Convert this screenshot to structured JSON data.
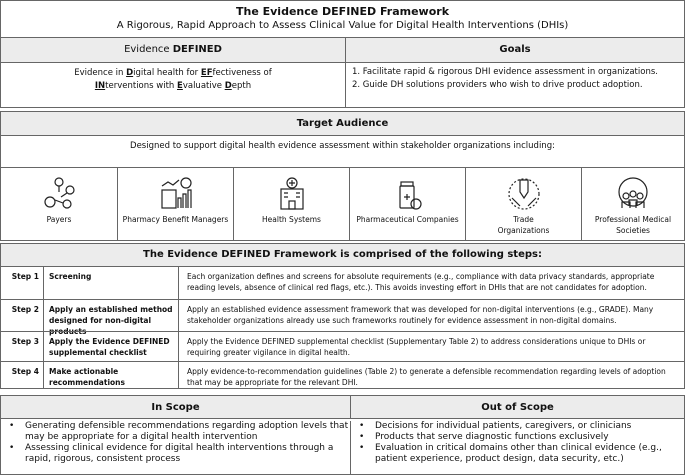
{
  "title": "The Evidence DEFINED Framework",
  "subtitle": "A Rigorous, Rapid Approach to Assess Clinical Value for Digital Health Interventions (DHIs)",
  "defined": {
    "header_pre": "Evidence ",
    "header_bold": "DEFINED",
    "acronym": [
      [
        "Evidence in ",
        ""
      ],
      [
        "D",
        "igital health for "
      ],
      [
        "EF",
        "fectiveness of"
      ],
      [
        "IN",
        "terventions with "
      ],
      [
        "E",
        "valuative "
      ],
      [
        "D",
        "epth"
      ]
    ]
  },
  "goals": {
    "header": "Goals",
    "items": [
      "1. Facilitate rapid & rigorous DHI evidence assessment in organizations.",
      "2. Guide DH solutions providers who wish to drive product adoption."
    ]
  },
  "audience": {
    "header": "Target Audience",
    "description": "Designed to support digital health evidence assessment within stakeholder organizations including:",
    "items": [
      {
        "label": "Payers",
        "icon": "payers-network-icon"
      },
      {
        "label": "Pharmacy Benefit Managers",
        "icon": "chart-report-icon"
      },
      {
        "label": "Health Systems",
        "icon": "hospital-icon"
      },
      {
        "label": "Pharmaceutical Companies",
        "icon": "pill-bottle-icon"
      },
      {
        "label": "Trade Organizations",
        "icon": "hands-icon"
      },
      {
        "label": "Professional Medical Societies",
        "icon": "globe-people-icon"
      }
    ]
  },
  "steps": {
    "header": "The Evidence DEFINED Framework is comprised of the following steps:",
    "items": [
      {
        "step": "Step 1",
        "name": "Screening",
        "desc": "Each organization defines and screens for absolute requirements (e.g., compliance with data privacy standards, appropriate reading levels, absence of clinical red flags, etc.). This avoids investing effort in DHIs that are not candidates for adoption."
      },
      {
        "step": "Step 2",
        "name": "Apply an established method designed for non-digital products",
        "desc": "Apply an established evidence assessment framework that was developed for non-digital interventions (e.g., GRADE). Many stakeholder organizations already use such frameworks routinely for evidence assessment in non-digital domains."
      },
      {
        "step": "Step 3",
        "name": "Apply the Evidence DEFINED supplemental checklist",
        "desc": "Apply the Evidence DEFINED supplemental checklist (Supplementary Table 2) to address considerations unique to DHIs or requiring greater vigilance in digital health."
      },
      {
        "step": "Step 4",
        "name": "Make actionable recommendations",
        "desc": "Apply evidence-to-recommendation guidelines (Table 2) to generate a defensible recommendation regarding levels of adoption that may be appropriate for the relevant DHI."
      }
    ]
  },
  "in_scope": {
    "header": "In Scope",
    "items": [
      "Generating defensible recommendations regarding adoption levels that may be appropriate for a digital health intervention",
      "Assessing clinical evidence for digital health interventions through a rapid, rigorous, consistent process"
    ]
  },
  "out_scope": {
    "header": "Out of Scope",
    "items": [
      "Decisions for individual patients, caregivers, or clinicians",
      "Products that serve diagnostic functions exclusively",
      "Evaluation in critical domains other than clinical evidence (e.g., patient experience, product design, data security, etc.)"
    ]
  }
}
